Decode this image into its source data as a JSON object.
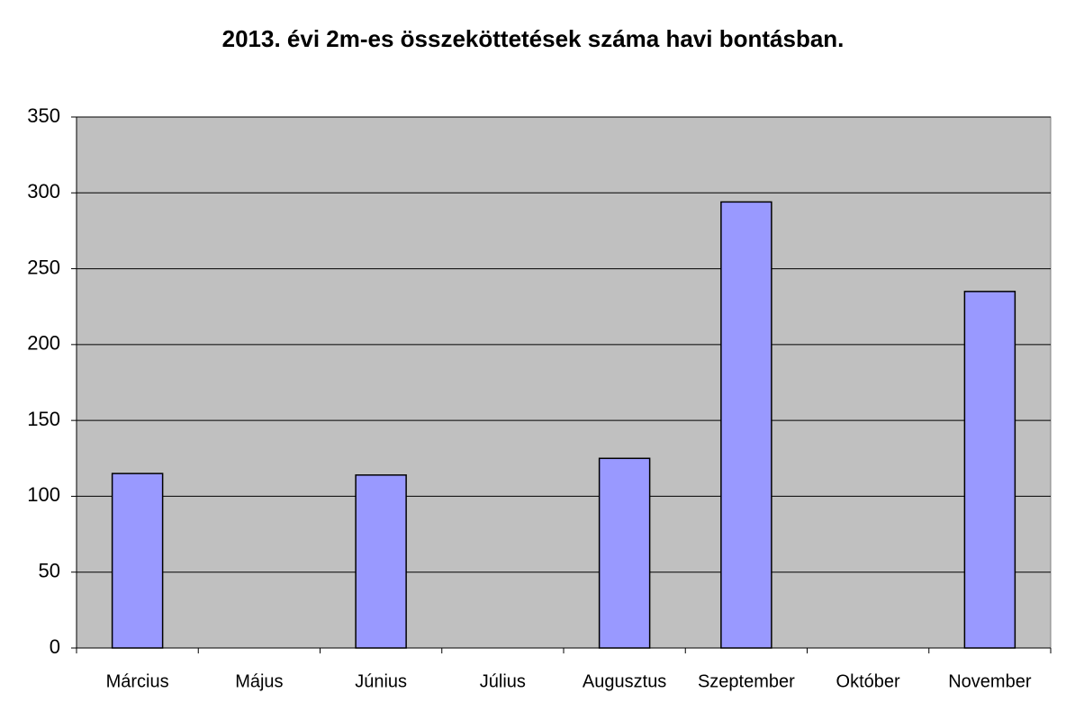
{
  "chart_data": {
    "type": "bar",
    "title": "2013. évi 2m-es összeköttetések száma havi bontásban.",
    "categories": [
      "Március",
      "Május",
      "Június",
      "Július",
      "Augusztus",
      "Szeptember",
      "Október",
      "November"
    ],
    "values": [
      115,
      null,
      114,
      null,
      125,
      294,
      null,
      235
    ],
    "color": "#9999ff",
    "plot_background": "#c0c0c0",
    "ylim": [
      0,
      350
    ],
    "yticks": [
      0,
      50,
      100,
      150,
      200,
      250,
      300,
      350
    ],
    "grid": true
  }
}
